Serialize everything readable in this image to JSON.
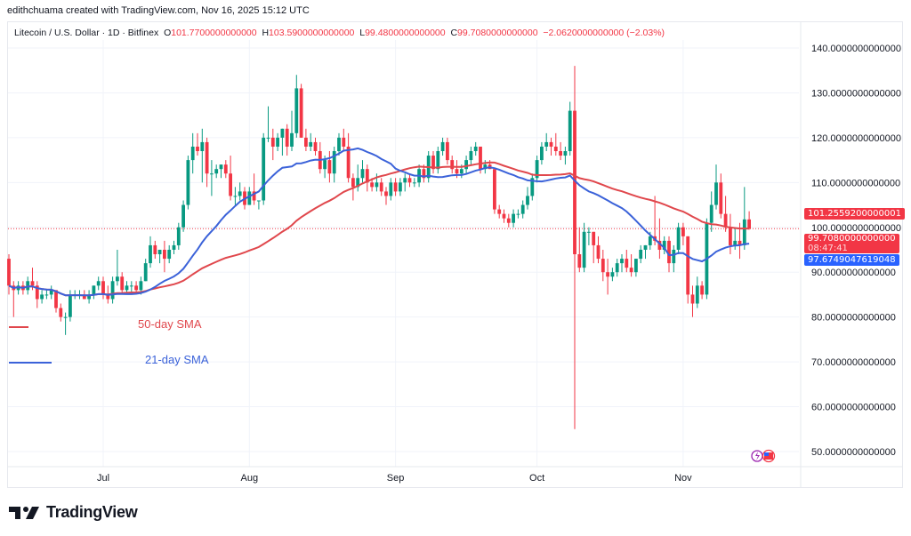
{
  "credit": "edithchuama created with TradingView.com, Nov 16, 2025 15:12 UTC",
  "legend": {
    "symbol": "Litecoin / U.S. Dollar · 1D · Bitfinex",
    "o_label": "O",
    "o": "101.7700000000000",
    "h_label": "H",
    "h": "103.5900000000000",
    "l_label": "L",
    "l": "99.4800000000000",
    "c_label": "C",
    "c": "99.7080000000000",
    "change": "−2.0620000000000 (−2.03%)"
  },
  "price_labels": {
    "sma50": "101.2559200000001",
    "last": "99.7080000000000",
    "countdown": "08:47:41",
    "sma21": "97.6749047619048"
  },
  "annotations": {
    "sma50": "50-day SMA",
    "sma21": "21-day SMA"
  },
  "footer": {
    "logo_text": "TradingView"
  },
  "colors": {
    "up": "#089981",
    "down": "#f23645",
    "sma50": "#e0474c",
    "sma21": "#3b62d9",
    "last_price": "#f23645"
  },
  "icons": [
    "lightning-icon",
    "us-flag-icon"
  ],
  "chart_data": {
    "type": "candlestick",
    "symbol": "Litecoin / U.S. Dollar",
    "interval": "1D",
    "ylim": [
      45,
      145
    ],
    "y_ticks": [
      140,
      130,
      120,
      110,
      100,
      90,
      80,
      70,
      60,
      50
    ],
    "y_tick_labels": [
      "140.0000000000000",
      "130.0000000000000",
      "120.0000000000000",
      "110.0000000000000",
      "100.0000000000000",
      "90.0000000000000",
      "80.0000000000000",
      "70.0000000000000",
      "60.0000000000000",
      "50.0000000000000"
    ],
    "x_ticks": [
      {
        "label": "Jul",
        "date": "2025-07-01"
      },
      {
        "label": "Aug",
        "date": "2025-08-01"
      },
      {
        "label": "Sep",
        "date": "2025-09-01"
      },
      {
        "label": "Oct",
        "date": "2025-10-01"
      },
      {
        "label": "Nov",
        "date": "2025-11-01"
      }
    ],
    "grid": true,
    "start_date": "2025-06-11",
    "indicators": [
      {
        "name": "50-day SMA",
        "period": 50
      },
      {
        "name": "21-day SMA",
        "period": 21
      }
    ],
    "ohlc": [
      [
        93,
        94,
        85,
        87
      ],
      [
        87,
        88,
        80,
        86
      ],
      [
        86,
        88,
        85,
        87
      ],
      [
        87,
        88,
        85,
        86
      ],
      [
        86,
        89,
        85,
        88
      ],
      [
        88,
        91,
        86,
        87
      ],
      [
        87,
        88,
        82,
        84
      ],
      [
        84,
        86,
        83,
        85
      ],
      [
        85,
        86,
        84,
        85
      ],
      [
        85,
        87,
        84,
        86
      ],
      [
        86,
        86,
        81,
        82
      ],
      [
        82,
        83,
        79,
        80
      ],
      [
        80,
        81,
        76,
        80
      ],
      [
        80,
        86,
        79,
        85
      ],
      [
        85,
        86,
        84,
        85
      ],
      [
        85,
        86,
        84,
        85
      ],
      [
        85,
        86,
        84,
        84
      ],
      [
        84,
        86,
        83,
        85
      ],
      [
        85,
        87,
        84,
        87
      ],
      [
        87,
        89,
        86,
        88
      ],
      [
        88,
        89,
        84,
        85
      ],
      [
        85,
        87,
        83,
        84
      ],
      [
        84,
        89,
        83,
        88
      ],
      [
        88,
        95,
        87,
        89
      ],
      [
        89,
        90,
        85,
        86
      ],
      [
        86,
        88,
        85,
        87
      ],
      [
        87,
        88,
        85,
        87
      ],
      [
        87,
        88,
        85,
        86
      ],
      [
        86,
        89,
        85,
        88
      ],
      [
        88,
        93,
        88,
        92
      ],
      [
        92,
        98,
        91,
        96
      ],
      [
        96,
        97,
        93,
        94
      ],
      [
        94,
        95,
        92,
        95
      ],
      [
        95,
        97,
        90,
        93
      ],
      [
        93,
        96,
        92,
        95
      ],
      [
        95,
        97,
        94,
        96
      ],
      [
        96,
        101,
        95,
        100
      ],
      [
        100,
        106,
        99,
        105
      ],
      [
        105,
        116,
        104,
        115
      ],
      [
        115,
        121,
        112,
        118
      ],
      [
        118,
        121,
        116,
        117
      ],
      [
        117,
        122,
        110,
        119
      ],
      [
        119,
        120,
        109,
        112
      ],
      [
        112,
        115,
        107,
        112
      ],
      [
        112,
        114,
        111,
        113
      ],
      [
        113,
        114,
        111,
        114
      ],
      [
        114,
        115,
        111,
        112
      ],
      [
        112,
        116,
        106,
        107
      ],
      [
        107,
        109,
        105,
        107
      ],
      [
        107,
        110,
        106,
        108
      ],
      [
        108,
        109,
        104,
        105
      ],
      [
        105,
        109,
        105,
        108
      ],
      [
        108,
        112,
        105,
        106
      ],
      [
        106,
        106,
        104,
        106
      ],
      [
        106,
        121,
        105,
        120
      ],
      [
        120,
        127,
        119,
        120
      ],
      [
        120,
        122,
        115,
        118
      ],
      [
        118,
        121,
        117,
        120
      ],
      [
        120,
        122,
        116,
        122
      ],
      [
        122,
        123,
        116,
        118
      ],
      [
        118,
        126,
        117,
        121
      ],
      [
        121,
        134,
        120,
        131
      ],
      [
        131,
        132,
        120,
        120
      ],
      [
        120,
        122,
        117,
        118
      ],
      [
        118,
        121,
        117,
        119
      ],
      [
        119,
        120,
        116,
        117
      ],
      [
        117,
        119,
        112,
        113
      ],
      [
        113,
        116,
        111,
        115
      ],
      [
        115,
        117,
        110,
        112
      ],
      [
        112,
        118,
        110,
        117
      ],
      [
        117,
        121,
        116,
        120
      ],
      [
        120,
        122,
        117,
        118
      ],
      [
        118,
        121,
        110,
        111
      ],
      [
        111,
        112,
        106,
        109
      ],
      [
        109,
        114,
        108,
        111
      ],
      [
        111,
        115,
        110,
        113
      ],
      [
        113,
        114,
        108,
        110
      ],
      [
        110,
        111,
        108,
        109
      ],
      [
        109,
        112,
        108,
        110
      ],
      [
        110,
        111,
        107,
        108
      ],
      [
        108,
        109,
        105,
        107
      ],
      [
        107,
        111,
        106,
        110
      ],
      [
        110,
        111,
        107,
        108
      ],
      [
        108,
        111,
        107,
        110
      ],
      [
        110,
        112,
        108,
        111
      ],
      [
        111,
        112,
        109,
        110
      ],
      [
        110,
        111,
        109,
        110
      ],
      [
        110,
        114,
        109,
        113
      ],
      [
        113,
        114,
        110,
        111
      ],
      [
        111,
        117,
        110,
        116
      ],
      [
        116,
        117,
        112,
        113
      ],
      [
        113,
        118,
        112,
        117
      ],
      [
        117,
        120,
        116,
        119
      ],
      [
        119,
        120,
        114,
        115
      ],
      [
        115,
        116,
        112,
        113
      ],
      [
        113,
        115,
        111,
        112
      ],
      [
        112,
        114,
        111,
        113
      ],
      [
        113,
        116,
        112,
        115
      ],
      [
        115,
        118,
        114,
        117
      ],
      [
        117,
        119,
        116,
        118
      ],
      [
        118,
        118,
        112,
        113
      ],
      [
        113,
        115,
        112,
        114
      ],
      [
        114,
        115,
        113,
        113
      ],
      [
        113,
        113,
        103,
        104
      ],
      [
        104,
        105,
        102,
        103
      ],
      [
        103,
        104,
        101,
        102
      ],
      [
        102,
        103,
        100,
        101
      ],
      [
        101,
        104,
        100,
        103
      ],
      [
        103,
        104,
        102,
        103
      ],
      [
        103,
        106,
        102,
        105
      ],
      [
        105,
        109,
        104,
        107
      ],
      [
        107,
        112,
        106,
        111
      ],
      [
        111,
        116,
        110,
        115
      ],
      [
        115,
        119,
        114,
        118
      ],
      [
        118,
        121,
        117,
        119
      ],
      [
        119,
        120,
        116,
        118
      ],
      [
        118,
        121,
        116,
        117
      ],
      [
        117,
        119,
        115,
        116
      ],
      [
        116,
        118,
        114,
        117
      ],
      [
        117,
        128,
        116,
        126
      ],
      [
        126,
        136,
        55,
        94
      ],
      [
        94,
        100,
        90,
        91
      ],
      [
        91,
        101,
        90,
        99
      ],
      [
        99,
        100,
        96,
        99
      ],
      [
        99,
        99,
        92,
        96
      ],
      [
        96,
        98,
        92,
        93
      ],
      [
        93,
        95,
        88,
        90
      ],
      [
        90,
        93,
        85,
        89
      ],
      [
        89,
        91,
        88,
        90
      ],
      [
        90,
        93,
        89,
        92
      ],
      [
        92,
        94,
        90,
        93
      ],
      [
        93,
        95,
        90,
        91
      ],
      [
        91,
        94,
        89,
        90
      ],
      [
        90,
        93,
        89,
        93
      ],
      [
        93,
        96,
        92,
        95
      ],
      [
        95,
        96,
        93,
        96
      ],
      [
        96,
        99,
        95,
        98
      ],
      [
        98,
        107,
        96,
        97
      ],
      [
        97,
        102,
        93,
        95
      ],
      [
        95,
        98,
        94,
        97
      ],
      [
        97,
        98,
        90,
        92
      ],
      [
        92,
        96,
        90,
        95
      ],
      [
        95,
        101,
        94,
        100
      ],
      [
        100,
        101,
        96,
        98
      ],
      [
        98,
        98,
        83,
        85
      ],
      [
        85,
        87,
        80,
        83
      ],
      [
        83,
        89,
        82,
        87
      ],
      [
        87,
        88,
        84,
        85
      ],
      [
        85,
        102,
        84,
        101
      ],
      [
        101,
        108,
        99,
        105
      ],
      [
        105,
        114,
        104,
        110
      ],
      [
        110,
        112,
        102,
        103
      ],
      [
        103,
        107,
        99,
        100
      ],
      [
        100,
        103,
        94,
        96
      ],
      [
        96,
        100,
        95,
        97
      ],
      [
        97,
        101,
        93,
        96
      ],
      [
        96,
        109,
        95,
        101.77
      ],
      [
        101.77,
        103.59,
        99.48,
        99.708
      ]
    ]
  }
}
